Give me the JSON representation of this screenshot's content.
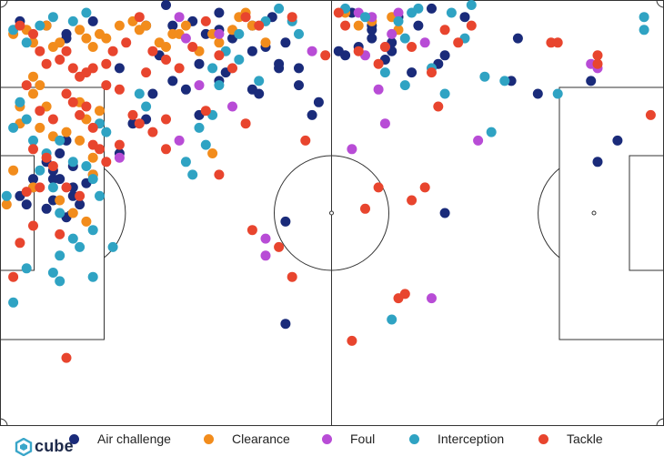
{
  "brand": {
    "name": "cube",
    "color": "#3aa6c9"
  },
  "legend": {
    "air": "Air challenge",
    "clearance": "Clearance",
    "foul": "Foul",
    "interception": "Interception",
    "tackle": "Tackle"
  },
  "colors": {
    "air": "#1a2b7a",
    "clearance": "#f28c1c",
    "foul": "#b84cd6",
    "interception": "#2fa3c3",
    "tackle": "#e8452e"
  },
  "chart_data": {
    "type": "scatter",
    "title": "",
    "xlabel": "",
    "ylabel": "",
    "xlim": [
      0,
      100
    ],
    "ylim": [
      0,
      100
    ],
    "grid": false,
    "legend_position": "bottom",
    "background": "football pitch (horizontal)",
    "series": [
      {
        "name": "Air challenge",
        "key": "air",
        "points": [
          [
            25,
            0.5
          ],
          [
            3,
            5
          ],
          [
            7,
            6
          ],
          [
            14,
            5
          ],
          [
            22,
            6
          ],
          [
            26,
            6
          ],
          [
            29,
            5
          ],
          [
            33,
            7
          ],
          [
            38,
            6
          ],
          [
            41,
            4
          ],
          [
            43,
            10
          ],
          [
            40,
            11
          ],
          [
            30,
            15
          ],
          [
            24,
            13
          ],
          [
            26,
            19
          ],
          [
            28,
            21
          ],
          [
            33,
            19
          ],
          [
            34,
            17
          ],
          [
            38,
            21
          ],
          [
            42,
            16
          ],
          [
            45,
            20
          ],
          [
            48,
            24
          ],
          [
            18,
            16
          ],
          [
            23,
            22
          ],
          [
            8,
            40
          ],
          [
            9,
            42
          ],
          [
            11,
            44
          ],
          [
            11,
            46
          ],
          [
            12,
            48
          ],
          [
            13,
            43
          ],
          [
            8,
            47
          ],
          [
            7,
            49
          ],
          [
            10,
            51
          ],
          [
            9,
            36
          ],
          [
            11,
            39
          ],
          [
            14,
            41
          ],
          [
            4,
            48
          ],
          [
            3,
            46
          ],
          [
            5,
            42
          ],
          [
            5,
            44
          ],
          [
            53,
            3
          ],
          [
            56,
            9
          ],
          [
            56,
            7
          ],
          [
            54,
            11
          ],
          [
            52,
            13
          ],
          [
            51,
            12
          ],
          [
            59,
            10
          ],
          [
            65,
            2
          ],
          [
            70,
            4
          ],
          [
            67,
            13
          ],
          [
            66,
            15
          ],
          [
            62,
            17
          ],
          [
            78,
            9
          ],
          [
            77,
            19
          ],
          [
            81,
            22
          ],
          [
            89,
            19
          ],
          [
            93,
            33
          ],
          [
            90,
            38
          ],
          [
            67,
            50
          ],
          [
            56,
            6
          ],
          [
            10,
            8
          ],
          [
            10,
            9
          ],
          [
            18,
            36
          ],
          [
            22,
            28
          ],
          [
            43,
            52
          ],
          [
            43,
            76
          ],
          [
            8,
            42
          ],
          [
            10,
            33
          ],
          [
            42,
            15
          ],
          [
            47,
            27
          ],
          [
            30,
            27
          ],
          [
            20,
            29
          ],
          [
            59,
            12
          ],
          [
            58,
            14
          ],
          [
            60,
            4
          ],
          [
            63,
            6
          ],
          [
            31,
            8
          ],
          [
            35,
            9
          ],
          [
            38,
            12
          ],
          [
            45,
            16
          ],
          [
            39,
            22
          ],
          [
            7,
            38
          ],
          [
            33,
            3
          ]
        ]
      },
      {
        "name": "Clearance",
        "key": "clearance",
        "points": [
          [
            2,
            8
          ],
          [
            4,
            7
          ],
          [
            5,
            10
          ],
          [
            7,
            6
          ],
          [
            8,
            11
          ],
          [
            9,
            10
          ],
          [
            12,
            7
          ],
          [
            13,
            9
          ],
          [
            14,
            11
          ],
          [
            15,
            8
          ],
          [
            16,
            9
          ],
          [
            18,
            6
          ],
          [
            21,
            7
          ],
          [
            22,
            6
          ],
          [
            24,
            10
          ],
          [
            25,
            11
          ],
          [
            27,
            8
          ],
          [
            28,
            6
          ],
          [
            30,
            12
          ],
          [
            32,
            8
          ],
          [
            33,
            10
          ],
          [
            35,
            7
          ],
          [
            36,
            4
          ],
          [
            37,
            3
          ],
          [
            38,
            6
          ],
          [
            40,
            10
          ],
          [
            5,
            22
          ],
          [
            7,
            25
          ],
          [
            6,
            30
          ],
          [
            8,
            32
          ],
          [
            10,
            31
          ],
          [
            12,
            33
          ],
          [
            13,
            28
          ],
          [
            14,
            37
          ],
          [
            3,
            29
          ],
          [
            2,
            40
          ],
          [
            5,
            44
          ],
          [
            9,
            47
          ],
          [
            11,
            50
          ],
          [
            13,
            52
          ],
          [
            14,
            41
          ],
          [
            1,
            48
          ],
          [
            32,
            36
          ],
          [
            52,
            3
          ],
          [
            54,
            6
          ],
          [
            59,
            4
          ],
          [
            60,
            7
          ],
          [
            56,
            5
          ],
          [
            5,
            18
          ],
          [
            6,
            20
          ],
          [
            15,
            26
          ],
          [
            12,
            24
          ],
          [
            20,
            5
          ],
          [
            26,
            8
          ],
          [
            3,
            25
          ]
        ]
      },
      {
        "name": "Foul",
        "key": "foul",
        "points": [
          [
            27,
            4
          ],
          [
            28,
            9
          ],
          [
            33,
            8
          ],
          [
            47,
            12
          ],
          [
            54,
            3
          ],
          [
            55,
            13
          ],
          [
            58,
            11
          ],
          [
            59,
            8
          ],
          [
            64,
            10
          ],
          [
            57,
            21
          ],
          [
            58,
            29
          ],
          [
            53,
            35
          ],
          [
            72,
            33
          ],
          [
            89,
            15
          ],
          [
            90,
            16
          ],
          [
            40,
            56
          ],
          [
            40,
            60
          ],
          [
            65,
            70
          ],
          [
            27,
            33
          ],
          [
            18,
            37
          ],
          [
            35,
            25
          ],
          [
            30,
            20
          ],
          [
            56,
            4
          ],
          [
            60,
            3
          ]
        ]
      },
      {
        "name": "Interception",
        "key": "interception",
        "points": [
          [
            2,
            7
          ],
          [
            4,
            10
          ],
          [
            6,
            6
          ],
          [
            8,
            4
          ],
          [
            11,
            5
          ],
          [
            13,
            3
          ],
          [
            3,
            24
          ],
          [
            4,
            28
          ],
          [
            2,
            30
          ],
          [
            5,
            33
          ],
          [
            7,
            36
          ],
          [
            9,
            33
          ],
          [
            11,
            38
          ],
          [
            13,
            39
          ],
          [
            14,
            42
          ],
          [
            15,
            46
          ],
          [
            8,
            44
          ],
          [
            6,
            40
          ],
          [
            9,
            50
          ],
          [
            11,
            56
          ],
          [
            12,
            58
          ],
          [
            9,
            60
          ],
          [
            14,
            54
          ],
          [
            4,
            63
          ],
          [
            8,
            64
          ],
          [
            9,
            66
          ],
          [
            17,
            58
          ],
          [
            14,
            65
          ],
          [
            21,
            22
          ],
          [
            22,
            25
          ],
          [
            29,
            41
          ],
          [
            30,
            30
          ],
          [
            31,
            34
          ],
          [
            32,
            27
          ],
          [
            33,
            20
          ],
          [
            32,
            16
          ],
          [
            34,
            12
          ],
          [
            36,
            14
          ],
          [
            36,
            8
          ],
          [
            40,
            5
          ],
          [
            42,
            2
          ],
          [
            52,
            2
          ],
          [
            55,
            4
          ],
          [
            60,
            5
          ],
          [
            61,
            9
          ],
          [
            62,
            3
          ],
          [
            63,
            2
          ],
          [
            65,
            16
          ],
          [
            67,
            22
          ],
          [
            68,
            3
          ],
          [
            70,
            9
          ],
          [
            71,
            1
          ],
          [
            73,
            18
          ],
          [
            74,
            31
          ],
          [
            59,
            75
          ],
          [
            28,
            38
          ],
          [
            1,
            46
          ],
          [
            2,
            71
          ],
          [
            15,
            29
          ],
          [
            16,
            31
          ],
          [
            44,
            5
          ],
          [
            45,
            8
          ],
          [
            39,
            19
          ],
          [
            58,
            17
          ],
          [
            61,
            20
          ],
          [
            76,
            19
          ],
          [
            84,
            22
          ],
          [
            97,
            4
          ],
          [
            97,
            7
          ]
        ]
      },
      {
        "name": "Tackle",
        "key": "tackle",
        "points": [
          [
            3,
            6
          ],
          [
            5,
            8
          ],
          [
            6,
            12
          ],
          [
            7,
            15
          ],
          [
            9,
            14
          ],
          [
            10,
            12
          ],
          [
            11,
            16
          ],
          [
            12,
            18
          ],
          [
            14,
            16
          ],
          [
            16,
            15
          ],
          [
            17,
            12
          ],
          [
            19,
            10
          ],
          [
            21,
            4
          ],
          [
            23,
            12
          ],
          [
            25,
            14
          ],
          [
            27,
            16
          ],
          [
            29,
            11
          ],
          [
            31,
            5
          ],
          [
            33,
            13
          ],
          [
            35,
            16
          ],
          [
            37,
            4
          ],
          [
            39,
            6
          ],
          [
            44,
            4
          ],
          [
            49,
            13
          ],
          [
            4,
            20
          ],
          [
            6,
            26
          ],
          [
            8,
            28
          ],
          [
            10,
            22
          ],
          [
            11,
            24
          ],
          [
            12,
            27
          ],
          [
            13,
            25
          ],
          [
            14,
            30
          ],
          [
            15,
            35
          ],
          [
            16,
            38
          ],
          [
            5,
            35
          ],
          [
            7,
            37
          ],
          [
            8,
            39
          ],
          [
            10,
            44
          ],
          [
            12,
            46
          ],
          [
            14,
            34
          ],
          [
            18,
            34
          ],
          [
            21,
            29
          ],
          [
            23,
            31
          ],
          [
            25,
            35
          ],
          [
            33,
            41
          ],
          [
            37,
            29
          ],
          [
            42,
            58
          ],
          [
            46,
            33
          ],
          [
            51,
            3
          ],
          [
            52,
            6
          ],
          [
            54,
            12
          ],
          [
            57,
            15
          ],
          [
            58,
            11
          ],
          [
            62,
            11
          ],
          [
            65,
            17
          ],
          [
            66,
            25
          ],
          [
            67,
            7
          ],
          [
            69,
            10
          ],
          [
            71,
            6
          ],
          [
            83,
            10
          ],
          [
            84,
            10
          ],
          [
            90,
            13
          ],
          [
            90,
            15
          ],
          [
            98,
            27
          ],
          [
            57,
            44
          ],
          [
            55,
            49
          ],
          [
            62,
            47
          ],
          [
            64,
            44
          ],
          [
            61,
            69
          ],
          [
            60,
            70
          ],
          [
            53,
            80
          ],
          [
            38,
            54
          ],
          [
            44,
            65
          ],
          [
            10,
            84
          ],
          [
            3,
            57
          ],
          [
            5,
            53
          ],
          [
            2,
            65
          ],
          [
            25,
            28
          ],
          [
            31,
            26
          ],
          [
            18,
            21
          ],
          [
            20,
            27
          ],
          [
            9,
            55
          ],
          [
            13,
            17
          ],
          [
            4,
            45
          ],
          [
            6,
            44
          ],
          [
            16,
            20
          ],
          [
            22,
            17
          ]
        ]
      }
    ]
  }
}
